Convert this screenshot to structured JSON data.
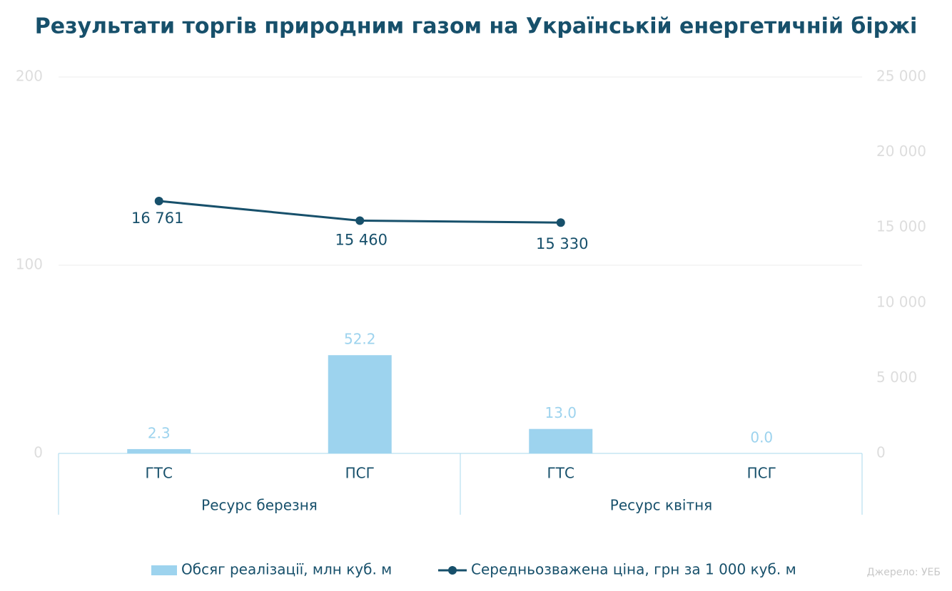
{
  "chart_data": {
    "type": "bar-line",
    "title": "Результати торгів природним газом на Українській енергетичній біржі",
    "categories": [
      "ГТС",
      "ПСГ",
      "ГТС",
      "ПСГ"
    ],
    "groups": [
      "Ресурс березня",
      "Ресурс квітня"
    ],
    "series": [
      {
        "name": "Обсяг реалізації, млн куб. м",
        "type": "bar",
        "color": "#9dd3ee",
        "values": [
          2.3,
          52.2,
          13.0,
          0.0
        ],
        "value_labels": [
          "2.3",
          "52.2",
          "13.0",
          "0.0"
        ]
      },
      {
        "name": "Середньозважена ціна, грн за 1 000 куб. м",
        "type": "line",
        "axis": "y2",
        "color": "#17506b",
        "values": [
          16761,
          15460,
          15330,
          null
        ],
        "value_labels": [
          "16 761",
          "15 460",
          "15 330",
          null
        ]
      }
    ],
    "ylim": [
      0,
      200
    ],
    "yticks": [
      0,
      100,
      200
    ],
    "y2lim": [
      0,
      25000
    ],
    "y2ticks": [
      0,
      {
        "value": 5000,
        "label": "5 000"
      },
      {
        "value": 10000,
        "label": "10 000"
      },
      {
        "value": 15000,
        "label": "15 000"
      },
      {
        "value": 20000,
        "label": "20 000"
      },
      {
        "value": 25000,
        "label": "25 000"
      }
    ],
    "grid": true,
    "source": "Джерело: УЕБ"
  }
}
